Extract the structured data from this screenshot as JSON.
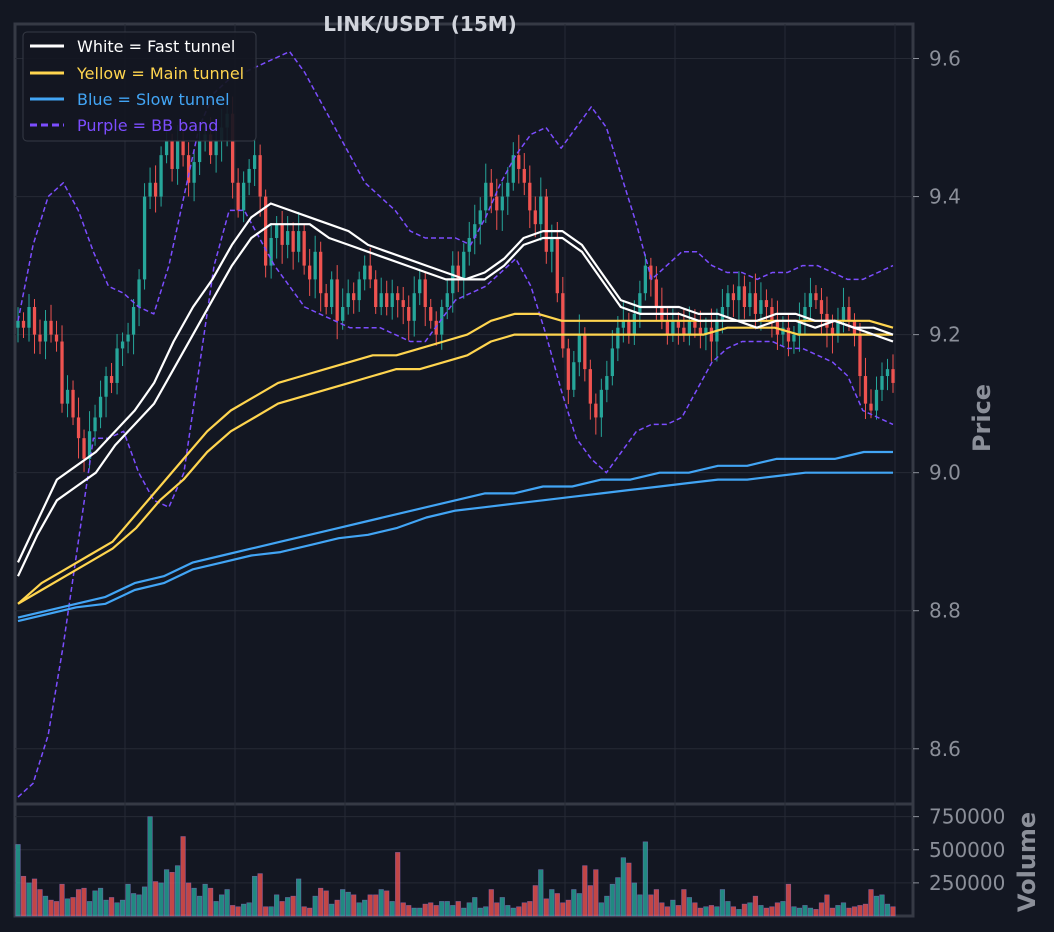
{
  "chart_data": {
    "type": "line",
    "title": "LINK/USDT (15M)",
    "price_panel": {
      "ylabel": "Price",
      "ylim": [
        8.52,
        9.65
      ],
      "yticks": [
        "9.6",
        "9.4",
        "9.2",
        "9.0",
        "8.8",
        "8.6"
      ],
      "ytick_values": [
        9.6,
        9.4,
        9.2,
        9.0,
        8.8,
        8.6
      ],
      "grid": true
    },
    "volume_panel": {
      "ylabel": "Volume",
      "ylim": [
        0,
        800000
      ],
      "yticks": [
        "750000",
        "500000",
        "250000"
      ],
      "ytick_values": [
        750000,
        500000,
        250000
      ],
      "grid": true
    },
    "legend": {
      "placement": "top-left",
      "entries": [
        {
          "label": "White = Fast tunnel",
          "color": "#ffffff",
          "dashed": false
        },
        {
          "label": "Yellow = Main tunnel",
          "color": "#ffd54f",
          "dashed": false
        },
        {
          "label": "Blue = Slow tunnel",
          "color": "#42a5f5",
          "dashed": false
        },
        {
          "label": "Purple = BB band",
          "color": "#7c4dff",
          "dashed": true
        }
      ]
    },
    "colors": {
      "up": "#26a69a",
      "down": "#ef5350",
      "fast": "#ffffff",
      "main": "#ffd54f",
      "slow": "#42a5f5",
      "bb": "#7c4dff"
    },
    "x_count": 160,
    "closes": [
      9.22,
      9.21,
      9.24,
      9.2,
      9.19,
      9.22,
      9.2,
      9.19,
      9.1,
      9.12,
      9.08,
      9.05,
      9.02,
      9.06,
      9.08,
      9.11,
      9.14,
      9.13,
      9.18,
      9.19,
      9.2,
      9.24,
      9.28,
      9.4,
      9.42,
      9.4,
      9.46,
      9.48,
      9.44,
      9.48,
      9.46,
      9.42,
      9.45,
      9.48,
      9.49,
      9.46,
      9.48,
      9.5,
      9.52,
      9.42,
      9.38,
      9.42,
      9.44,
      9.46,
      9.4,
      9.3,
      9.34,
      9.36,
      9.33,
      9.35,
      9.32,
      9.35,
      9.3,
      9.28,
      9.32,
      9.26,
      9.24,
      9.28,
      9.22,
      9.24,
      9.26,
      9.25,
      9.28,
      9.3,
      9.28,
      9.24,
      9.26,
      9.24,
      9.26,
      9.25,
      9.24,
      9.22,
      9.26,
      9.28,
      9.24,
      9.22,
      9.2,
      9.24,
      9.26,
      9.3,
      9.28,
      9.32,
      9.34,
      9.36,
      9.38,
      9.42,
      9.4,
      9.38,
      9.4,
      9.42,
      9.46,
      9.44,
      9.42,
      9.38,
      9.36,
      9.4,
      9.32,
      9.34,
      9.26,
      9.18,
      9.12,
      9.16,
      9.2,
      9.15,
      9.1,
      9.08,
      9.12,
      9.14,
      9.18,
      9.21,
      9.22,
      9.2,
      9.23,
      9.26,
      9.3,
      9.28,
      9.24,
      9.22,
      9.2,
      9.22,
      9.21,
      9.2,
      9.22,
      9.21,
      9.2,
      9.21,
      9.19,
      9.22,
      9.24,
      9.26,
      9.25,
      9.27,
      9.24,
      9.26,
      9.23,
      9.25,
      9.24,
      9.22,
      9.2,
      9.21,
      9.19,
      9.2,
      9.22,
      9.24,
      9.26,
      9.25,
      9.23,
      9.21,
      9.2,
      9.22,
      9.24,
      9.22,
      9.2,
      9.14,
      9.1,
      9.09,
      9.12,
      9.14,
      9.15,
      9.13
    ],
    "fast_upper": [
      8.87,
      8.93,
      8.99,
      9.01,
      9.03,
      9.06,
      9.09,
      9.13,
      9.19,
      9.24,
      9.28,
      9.33,
      9.37,
      9.39,
      9.38,
      9.37,
      9.36,
      9.35,
      9.33,
      9.32,
      9.31,
      9.3,
      9.29,
      9.28,
      9.29,
      9.31,
      9.34,
      9.35,
      9.35,
      9.33,
      9.29,
      9.25,
      9.24,
      9.24,
      9.24,
      9.23,
      9.23,
      9.22,
      9.22,
      9.23,
      9.23,
      9.22,
      9.22,
      9.21,
      9.21,
      9.2
    ],
    "fast_lower": [
      8.85,
      8.91,
      8.96,
      8.98,
      9.0,
      9.04,
      9.07,
      9.1,
      9.15,
      9.2,
      9.25,
      9.3,
      9.34,
      9.36,
      9.36,
      9.36,
      9.34,
      9.33,
      9.32,
      9.31,
      9.3,
      9.29,
      9.28,
      9.28,
      9.28,
      9.3,
      9.33,
      9.34,
      9.34,
      9.32,
      9.28,
      9.24,
      9.23,
      9.23,
      9.23,
      9.22,
      9.22,
      9.22,
      9.21,
      9.22,
      9.22,
      9.21,
      9.22,
      9.21,
      9.2,
      9.19
    ],
    "main_upper": [
      8.81,
      8.84,
      8.86,
      8.88,
      8.9,
      8.94,
      8.98,
      9.02,
      9.06,
      9.09,
      9.11,
      9.13,
      9.14,
      9.15,
      9.16,
      9.17,
      9.17,
      9.18,
      9.19,
      9.2,
      9.22,
      9.23,
      9.23,
      9.22,
      9.22,
      9.22,
      9.22,
      9.22,
      9.22,
      9.22,
      9.22,
      9.22,
      9.22,
      9.22,
      9.22,
      9.22,
      9.22,
      9.21
    ],
    "main_lower": [
      8.81,
      8.83,
      8.85,
      8.87,
      8.89,
      8.92,
      8.96,
      8.99,
      9.03,
      9.06,
      9.08,
      9.1,
      9.11,
      9.12,
      9.13,
      9.14,
      9.15,
      9.15,
      9.16,
      9.17,
      9.19,
      9.2,
      9.2,
      9.2,
      9.2,
      9.2,
      9.2,
      9.2,
      9.2,
      9.2,
      9.21,
      9.21,
      9.21,
      9.2,
      9.2,
      9.2,
      9.2,
      9.2
    ],
    "slow_upper": [
      8.79,
      8.8,
      8.81,
      8.82,
      8.84,
      8.85,
      8.87,
      8.88,
      8.89,
      8.9,
      8.91,
      8.92,
      8.93,
      8.94,
      8.95,
      8.96,
      8.97,
      8.97,
      8.98,
      8.98,
      8.99,
      8.99,
      9.0,
      9.0,
      9.01,
      9.01,
      9.02,
      9.02,
      9.02,
      9.03,
      9.03
    ],
    "slow_lower": [
      8.785,
      8.795,
      8.805,
      8.81,
      8.83,
      8.84,
      8.86,
      8.87,
      8.88,
      8.885,
      8.895,
      8.905,
      8.91,
      8.92,
      8.935,
      8.945,
      8.95,
      8.955,
      8.96,
      8.965,
      8.97,
      8.975,
      8.98,
      8.985,
      8.99,
      8.99,
      8.995,
      9.0,
      9.0,
      9.0,
      9.0
    ],
    "bb_upper": [
      9.22,
      9.33,
      9.4,
      9.42,
      9.38,
      9.32,
      9.27,
      9.26,
      9.24,
      9.23,
      9.3,
      9.4,
      9.5,
      9.55,
      9.57,
      9.58,
      9.59,
      9.6,
      9.61,
      9.58,
      9.54,
      9.5,
      9.46,
      9.42,
      9.4,
      9.38,
      9.35,
      9.34,
      9.34,
      9.34,
      9.33,
      9.37,
      9.42,
      9.46,
      9.49,
      9.5,
      9.47,
      9.5,
      9.53,
      9.5,
      9.43,
      9.36,
      9.28,
      9.3,
      9.32,
      9.32,
      9.3,
      9.29,
      9.29,
      9.28,
      9.29,
      9.29,
      9.3,
      9.3,
      9.29,
      9.28,
      9.28,
      9.29,
      9.3
    ],
    "bb_lower": [
      8.53,
      8.55,
      8.62,
      8.75,
      8.9,
      9.05,
      9.05,
      9.06,
      9.0,
      8.96,
      8.95,
      9.0,
      9.15,
      9.3,
      9.38,
      9.38,
      9.34,
      9.3,
      9.27,
      9.24,
      9.23,
      9.22,
      9.21,
      9.21,
      9.21,
      9.2,
      9.19,
      9.19,
      9.22,
      9.25,
      9.26,
      9.27,
      9.29,
      9.31,
      9.27,
      9.2,
      9.12,
      9.05,
      9.02,
      9.0,
      9.03,
      9.06,
      9.07,
      9.07,
      9.08,
      9.12,
      9.16,
      9.18,
      9.19,
      9.19,
      9.19,
      9.18,
      9.18,
      9.17,
      9.16,
      9.14,
      9.09,
      9.08,
      9.07
    ],
    "volumes": [
      540000,
      300000,
      250000,
      280000,
      200000,
      150000,
      120000,
      110000,
      240000,
      130000,
      140000,
      200000,
      210000,
      110000,
      190000,
      210000,
      120000,
      140000,
      100000,
      120000,
      240000,
      170000,
      160000,
      220000,
      750000,
      260000,
      250000,
      350000,
      330000,
      380000,
      600000,
      250000,
      210000,
      150000,
      240000,
      210000,
      110000,
      160000,
      200000,
      80000,
      70000,
      90000,
      100000,
      300000,
      320000,
      70000,
      70000,
      160000,
      110000,
      140000,
      150000,
      280000,
      70000,
      60000,
      150000,
      210000,
      190000,
      90000,
      120000,
      200000,
      180000,
      160000,
      100000,
      120000,
      160000,
      160000,
      200000,
      190000,
      110000,
      480000,
      100000,
      80000,
      60000,
      60000,
      90000,
      100000,
      80000,
      110000,
      110000,
      80000,
      110000,
      60000,
      100000,
      140000,
      60000,
      70000,
      200000,
      100000,
      140000,
      80000,
      60000,
      70000,
      100000,
      110000,
      230000,
      350000,
      130000,
      200000,
      170000,
      100000,
      120000,
      200000,
      170000,
      380000,
      230000,
      350000,
      100000,
      150000,
      240000,
      290000,
      440000,
      400000,
      250000,
      160000,
      560000,
      160000,
      200000,
      100000,
      70000,
      120000,
      80000,
      200000,
      140000,
      100000,
      60000,
      70000,
      80000,
      70000,
      200000,
      110000,
      70000,
      50000,
      90000,
      100000,
      150000,
      80000,
      60000,
      70000,
      100000,
      110000,
      240000,
      70000,
      60000,
      80000,
      60000,
      50000,
      100000,
      160000,
      60000,
      80000,
      100000,
      60000,
      70000,
      80000,
      90000,
      200000,
      150000,
      160000,
      90000,
      70000
    ],
    "vol_colors": []
  }
}
